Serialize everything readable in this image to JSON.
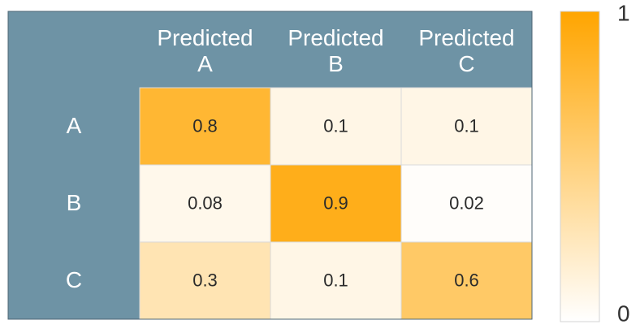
{
  "chart_data": {
    "type": "heatmap",
    "title": "",
    "xlabel": "",
    "ylabel": "",
    "columns": [
      [
        "Predicted",
        "A"
      ],
      [
        "Predicted",
        "B"
      ],
      [
        "Predicted",
        "C"
      ]
    ],
    "rows": [
      "A",
      "B",
      "C"
    ],
    "values": [
      [
        0.8,
        0.1,
        0.1
      ],
      [
        0.08,
        0.9,
        0.02
      ],
      [
        0.3,
        0.1,
        0.6
      ]
    ],
    "value_labels": [
      [
        "0.8",
        "0.1",
        "0.1"
      ],
      [
        "0.08",
        "0.9",
        "0.02"
      ],
      [
        "0.3",
        "0.1",
        "0.6"
      ]
    ],
    "colorbar": {
      "min": 0,
      "max": 1,
      "min_label": "0",
      "max_label": "1"
    },
    "colors": {
      "header_bg": "#6e93a5",
      "header_text": "#ffffff",
      "cell_text": "#2b2b2b",
      "scale_low": "#ffffff",
      "scale_high": "#ffa500",
      "grid_line": "#d9d9d9"
    }
  }
}
